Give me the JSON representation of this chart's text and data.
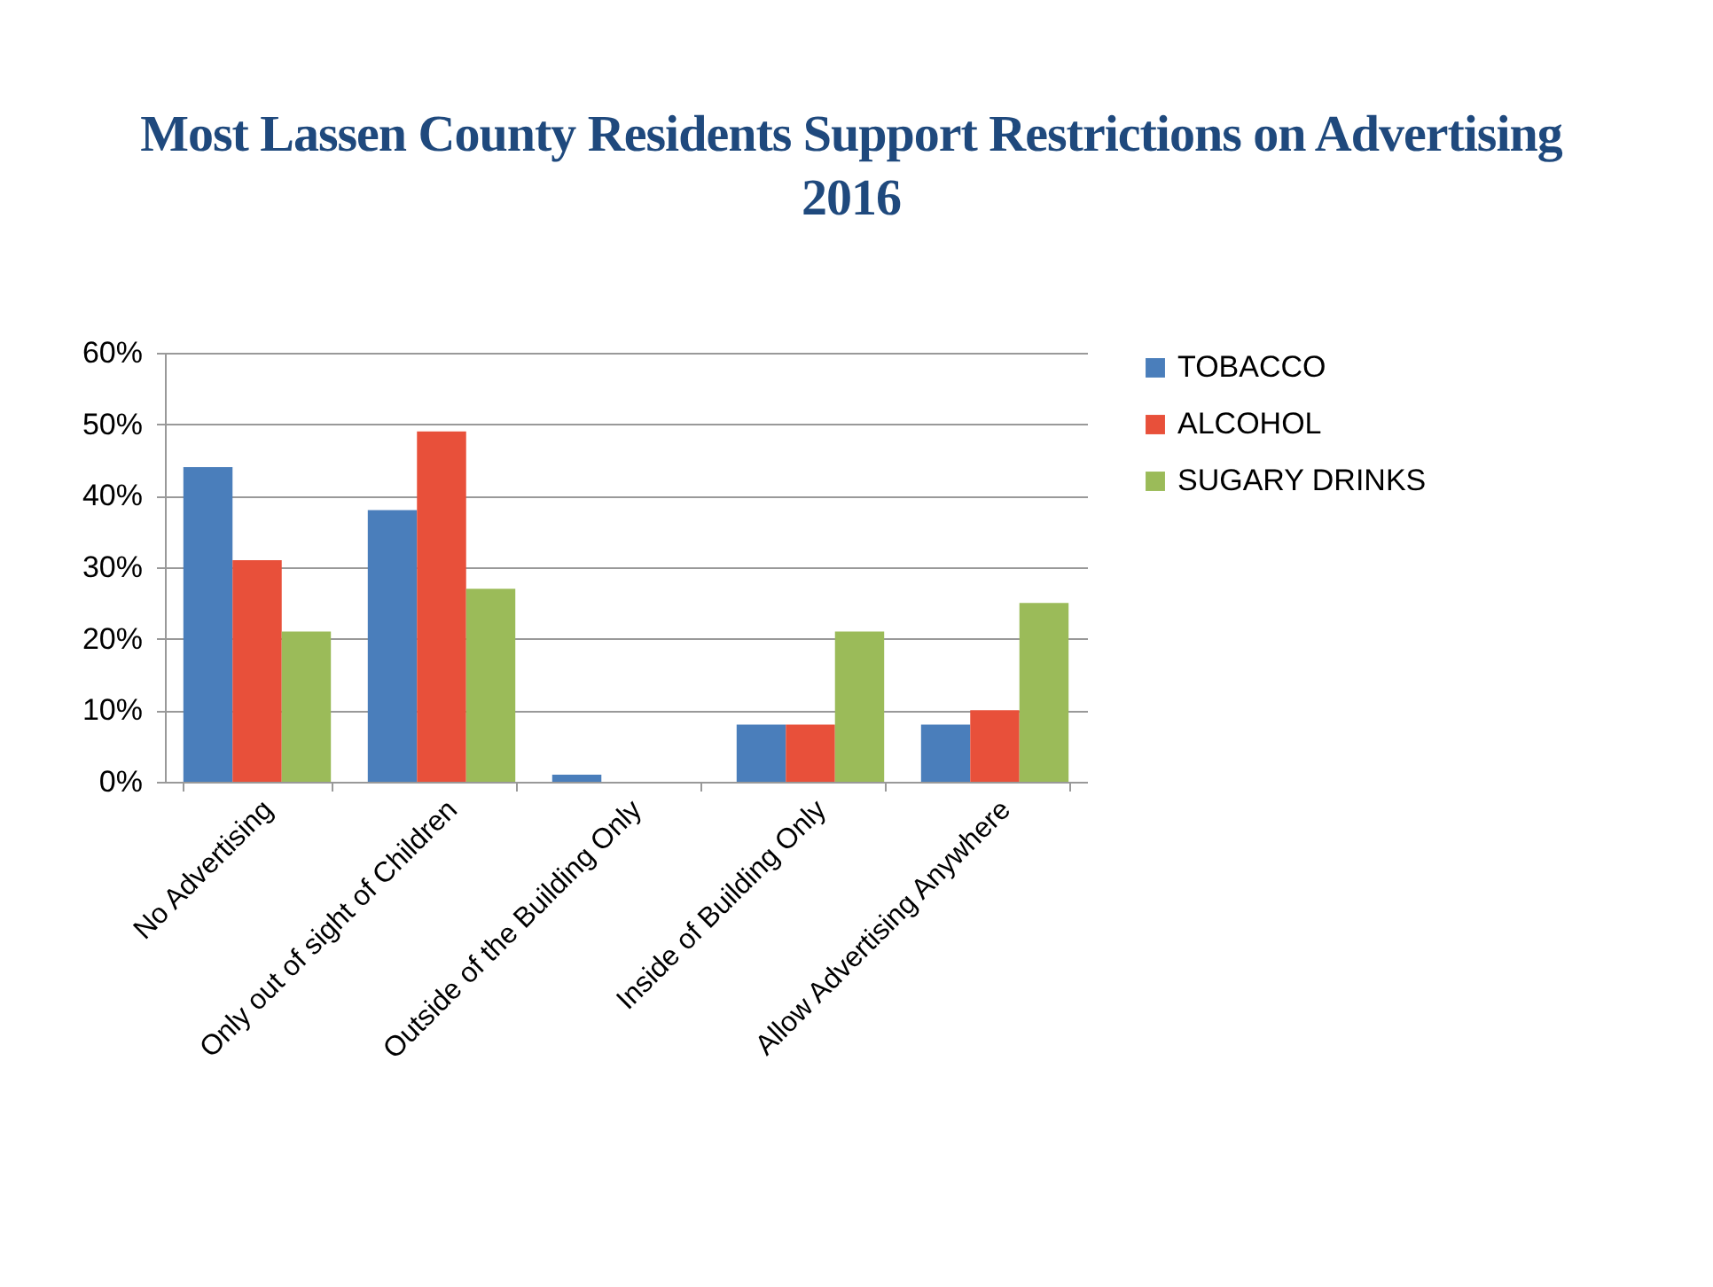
{
  "chart_data": {
    "type": "bar",
    "title": "Most Lassen County Residents Support Restrictions on Advertising 2016",
    "categories": [
      "No Advertising",
      "Only out of sight of Children",
      "Outside of the Building Only",
      "Inside of Building Only",
      "Allow Advertising Anywhere"
    ],
    "series": [
      {
        "name": "TOBACCO",
        "color": "#4a7ebb",
        "values": [
          44,
          38,
          1,
          8,
          8
        ]
      },
      {
        "name": "ALCOHOL",
        "color": "#e8503a",
        "values": [
          31,
          49,
          0,
          8,
          10
        ]
      },
      {
        "name": "SUGARY DRINKS",
        "color": "#9bbb59",
        "values": [
          21,
          27,
          0,
          21,
          25
        ]
      }
    ],
    "ylim": [
      0,
      60
    ],
    "yticks": [
      {
        "value": 0,
        "label": "0%"
      },
      {
        "value": 10,
        "label": "10%"
      },
      {
        "value": 20,
        "label": "20%"
      },
      {
        "value": 30,
        "label": "30%"
      },
      {
        "value": 40,
        "label": "40%"
      },
      {
        "value": 50,
        "label": "50%"
      },
      {
        "value": 60,
        "label": "60%"
      }
    ],
    "grid": "y",
    "legend": "right"
  }
}
